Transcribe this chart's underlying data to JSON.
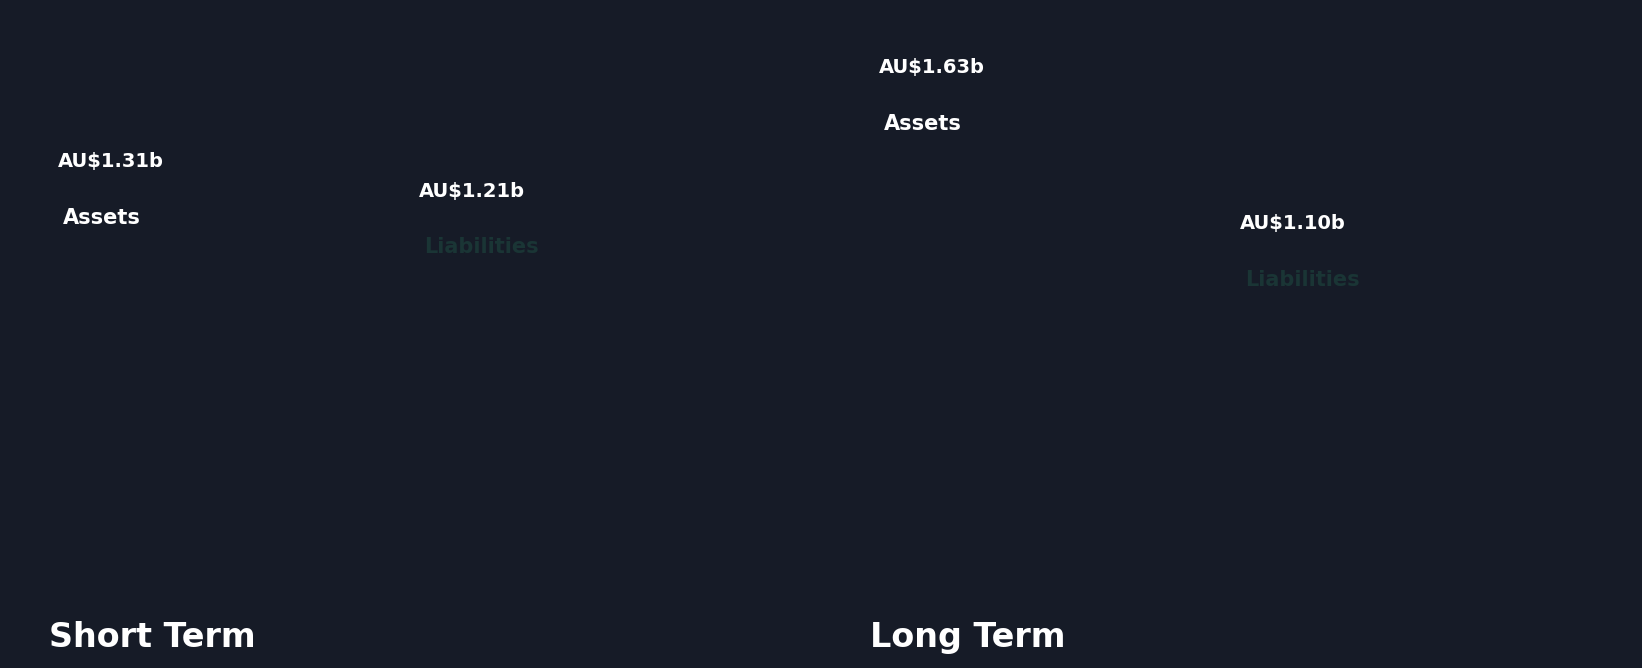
{
  "background_color": "#161b27",
  "asset_color": "#2196d3",
  "liability_color": "#4de8bc",
  "short_term": {
    "label": "Short Term",
    "assets_value": 1.31,
    "assets_label": "AU$1.31b",
    "assets_text": "Assets",
    "liabilities_value": 1.21,
    "liabilities_label": "AU$1.21b",
    "liabilities_text": "Liabilities"
  },
  "long_term": {
    "label": "Long Term",
    "assets_value": 1.63,
    "assets_label": "AU$1.63b",
    "assets_text": "Assets",
    "liabilities_value": 1.1,
    "liabilities_label": "AU$1.10b",
    "liabilities_text": "Liabilities"
  },
  "value_label_color": "#ffffff",
  "asset_text_color": "#ffffff",
  "liability_text_color": "#1a3535",
  "group_label_color": "#ffffff",
  "group_label_fontsize": 24,
  "value_label_fontsize": 14,
  "bar_text_fontsize": 15
}
